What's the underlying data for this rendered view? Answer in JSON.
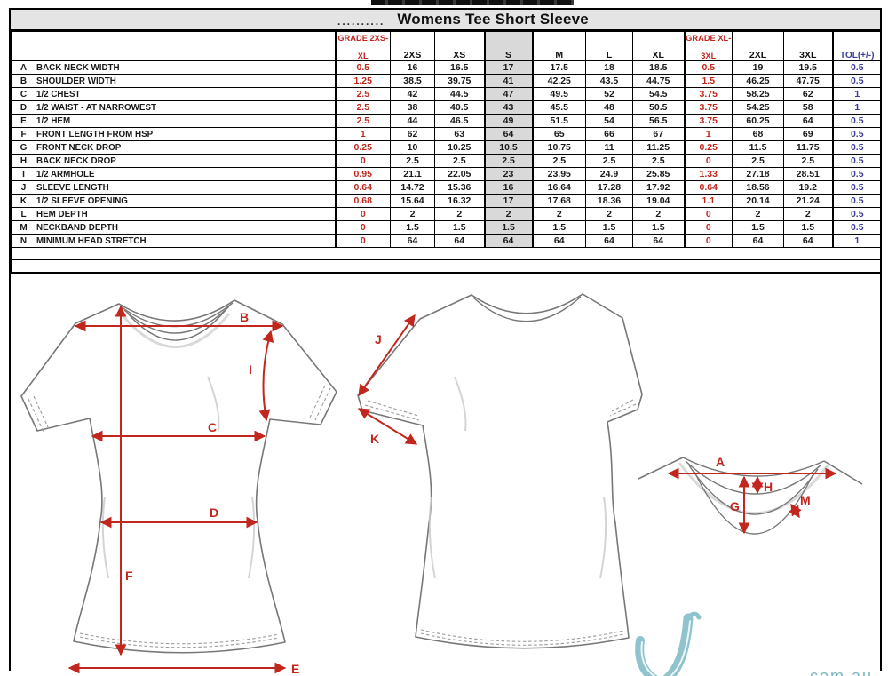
{
  "header": {
    "redacted": "..........",
    "title": "Womens Tee Short Sleeve"
  },
  "colors": {
    "accent_red": "#c2271d",
    "accent_blue": "#3b3b9c",
    "highlight_gray": "#d9d9d9",
    "watermark_teal": "#7ab5c2"
  },
  "table": {
    "columns": {
      "grade_low_line1": "GRADE 2XS-",
      "grade_low_line2": "XL",
      "sizes_low": [
        "2XS",
        "XS",
        "S",
        "M",
        "L",
        "XL"
      ],
      "grade_high_line1": "GRADE  XL-",
      "grade_high_line2": "3XL",
      "sizes_high": [
        "2XL",
        "3XL"
      ],
      "tol": "TOL(+/-)"
    },
    "rows": [
      {
        "letter": "A",
        "name": "BACK NECK WIDTH",
        "grade_low": "0.5",
        "values": [
          "16",
          "16.5",
          "17",
          "17.5",
          "18",
          "18.5"
        ],
        "grade_high": "0.5",
        "values_high": [
          "19",
          "19.5"
        ],
        "tol": "0.5"
      },
      {
        "letter": "B",
        "name": "SHOULDER WIDTH",
        "grade_low": "1.25",
        "values": [
          "38.5",
          "39.75",
          "41",
          "42.25",
          "43.5",
          "44.75"
        ],
        "grade_high": "1.5",
        "values_high": [
          "46.25",
          "47.75"
        ],
        "tol": "0.5"
      },
      {
        "letter": "C",
        "name": "1/2 CHEST",
        "grade_low": "2.5",
        "values": [
          "42",
          "44.5",
          "47",
          "49.5",
          "52",
          "54.5"
        ],
        "grade_high": "3.75",
        "values_high": [
          "58.25",
          "62"
        ],
        "tol": "1"
      },
      {
        "letter": "D",
        "name": "1/2 WAIST - AT NARROWEST",
        "grade_low": "2.5",
        "values": [
          "38",
          "40.5",
          "43",
          "45.5",
          "48",
          "50.5"
        ],
        "grade_high": "3.75",
        "values_high": [
          "54.25",
          "58"
        ],
        "tol": "1"
      },
      {
        "letter": "E",
        "name": "1/2 HEM",
        "grade_low": "2.5",
        "values": [
          "44",
          "46.5",
          "49",
          "51.5",
          "54",
          "56.5"
        ],
        "grade_high": "3.75",
        "values_high": [
          "60.25",
          "64"
        ],
        "tol": "0.5"
      },
      {
        "letter": "F",
        "name": "FRONT LENGTH FROM HSP",
        "grade_low": "1",
        "values": [
          "62",
          "63",
          "64",
          "65",
          "66",
          "67"
        ],
        "grade_high": "1",
        "values_high": [
          "68",
          "69"
        ],
        "tol": "0.5"
      },
      {
        "letter": "G",
        "name": "FRONT NECK DROP",
        "grade_low": "0.25",
        "values": [
          "10",
          "10.25",
          "10.5",
          "10.75",
          "11",
          "11.25"
        ],
        "grade_high": "0.25",
        "values_high": [
          "11.5",
          "11.75"
        ],
        "tol": "0.5"
      },
      {
        "letter": "H",
        "name": "BACK NECK DROP",
        "grade_low": "0",
        "values": [
          "2.5",
          "2.5",
          "2.5",
          "2.5",
          "2.5",
          "2.5"
        ],
        "grade_high": "0",
        "values_high": [
          "2.5",
          "2.5"
        ],
        "tol": "0.5"
      },
      {
        "letter": "I",
        "name": "1/2 ARMHOLE",
        "grade_low": "0.95",
        "values": [
          "21.1",
          "22.05",
          "23",
          "23.95",
          "24.9",
          "25.85"
        ],
        "grade_high": "1.33",
        "values_high": [
          "27.18",
          "28.51"
        ],
        "tol": "0.5"
      },
      {
        "letter": "J",
        "name": "SLEEVE LENGTH",
        "grade_low": "0.64",
        "values": [
          "14.72",
          "15.36",
          "16",
          "16.64",
          "17.28",
          "17.92"
        ],
        "grade_high": "0.64",
        "values_high": [
          "18.56",
          "19.2"
        ],
        "tol": "0.5"
      },
      {
        "letter": "K",
        "name": "1/2 SLEEVE OPENING",
        "grade_low": "0.68",
        "values": [
          "15.64",
          "16.32",
          "17",
          "17.68",
          "18.36",
          "19.04"
        ],
        "grade_high": "1.1",
        "values_high": [
          "20.14",
          "21.24"
        ],
        "tol": "0.5"
      },
      {
        "letter": "L",
        "name": "HEM DEPTH",
        "grade_low": "0",
        "values": [
          "2",
          "2",
          "2",
          "2",
          "2",
          "2"
        ],
        "grade_high": "0",
        "values_high": [
          "2",
          "2"
        ],
        "tol": "0.5"
      },
      {
        "letter": "M",
        "name": "NECKBAND DEPTH",
        "grade_low": "0",
        "values": [
          "1.5",
          "1.5",
          "1.5",
          "1.5",
          "1.5",
          "1.5"
        ],
        "grade_high": "0",
        "values_high": [
          "1.5",
          "1.5"
        ],
        "tol": "0.5"
      },
      {
        "letter": "N",
        "name": "MINIMUM HEAD STRETCH",
        "grade_low": "0",
        "values": [
          "64",
          "64",
          "64",
          "64",
          "64",
          "64"
        ],
        "grade_high": "0",
        "values_high": [
          "64",
          "64"
        ],
        "tol": "1"
      }
    ]
  },
  "diagram_labels": {
    "A": "A",
    "B": "B",
    "C": "C",
    "D": "D",
    "E": "E",
    "F": "F",
    "G": "G",
    "H": "H",
    "I": "I",
    "J": "J",
    "K": "K",
    "M": "M"
  },
  "watermark": {
    "domain": ".com.au"
  }
}
